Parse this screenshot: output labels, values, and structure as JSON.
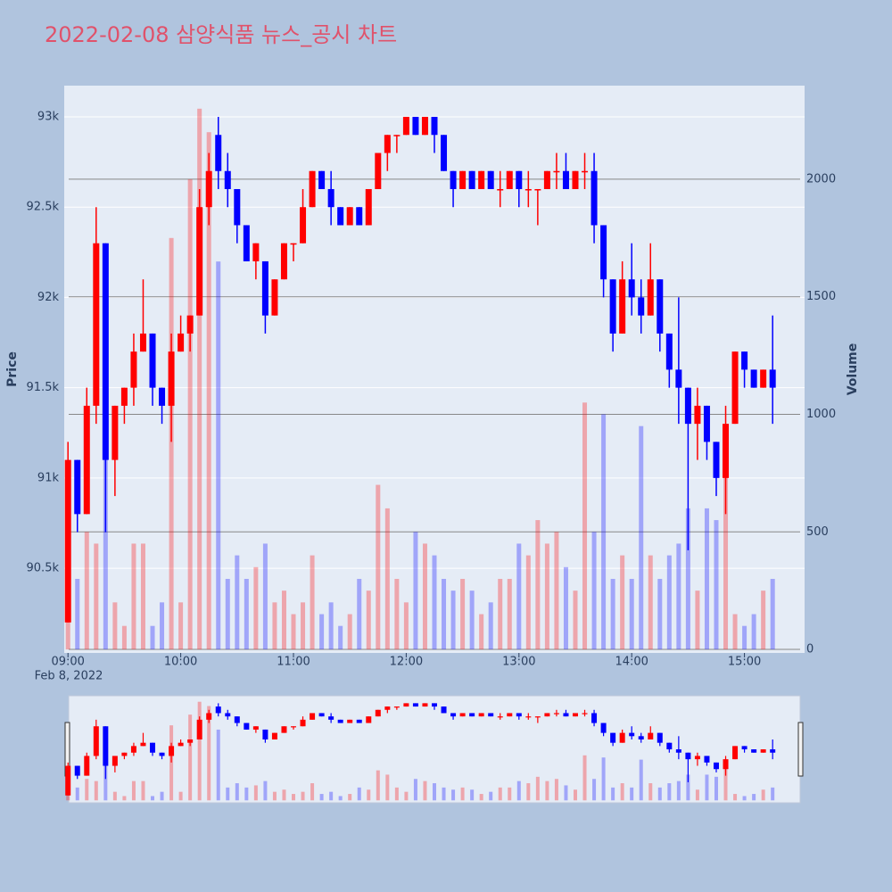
{
  "chart_data": {
    "type": "candlestick",
    "title": "2022-02-08 삼양식품 뉴스_공시 차트",
    "yaxis_title": "Price",
    "y2axis_title": "Volume",
    "x_date_label": "Feb 8, 2022",
    "up_color": "#ff0000",
    "down_color": "#0000ff",
    "x": [
      "09:00",
      "09:05",
      "09:10",
      "09:15",
      "09:20",
      "09:25",
      "09:30",
      "09:35",
      "09:40",
      "09:45",
      "09:50",
      "09:55",
      "10:00",
      "10:05",
      "10:10",
      "10:15",
      "10:20",
      "10:25",
      "10:30",
      "10:35",
      "10:40",
      "10:45",
      "10:50",
      "10:55",
      "11:00",
      "11:05",
      "11:10",
      "11:15",
      "11:20",
      "11:25",
      "11:30",
      "11:35",
      "11:40",
      "11:45",
      "11:50",
      "11:55",
      "12:00",
      "12:05",
      "12:10",
      "12:15",
      "12:20",
      "12:25",
      "12:30",
      "12:35",
      "12:40",
      "12:45",
      "12:50",
      "12:55",
      "13:00",
      "13:05",
      "13:10",
      "13:15",
      "13:20",
      "13:25",
      "13:30",
      "13:35",
      "13:40",
      "13:45",
      "13:50",
      "13:55",
      "14:00",
      "14:05",
      "14:10",
      "14:15",
      "14:20",
      "14:25",
      "14:30",
      "14:35",
      "14:40",
      "14:45",
      "14:50",
      "14:55",
      "15:00",
      "15:05",
      "15:10",
      "15:15"
    ],
    "open": [
      90200,
      91100,
      90800,
      91400,
      92300,
      91100,
      91400,
      91500,
      91700,
      91800,
      91500,
      91400,
      91700,
      91800,
      91900,
      92500,
      92900,
      92700,
      92600,
      92400,
      92200,
      92200,
      91900,
      92100,
      92300,
      92300,
      92500,
      92700,
      92600,
      92500,
      92400,
      92500,
      92400,
      92600,
      92800,
      92900,
      92900,
      93000,
      92900,
      93000,
      92900,
      92700,
      92600,
      92700,
      92600,
      92700,
      92600,
      92600,
      92700,
      92600,
      92600,
      92600,
      92700,
      92700,
      92600,
      92700,
      92700,
      92400,
      92100,
      91800,
      92100,
      92000,
      91900,
      92100,
      91800,
      91600,
      91500,
      91300,
      91400,
      91200,
      91000,
      91300,
      91700,
      91600,
      91500,
      91600
    ],
    "high": [
      91200,
      91100,
      91500,
      92500,
      92300,
      91400,
      91500,
      91800,
      92100,
      91800,
      91500,
      91800,
      91900,
      91900,
      92600,
      92800,
      93000,
      92800,
      92600,
      92400,
      92300,
      92200,
      92100,
      92300,
      92300,
      92600,
      92700,
      92700,
      92700,
      92500,
      92500,
      92500,
      92600,
      92800,
      92900,
      92900,
      93000,
      93000,
      93000,
      93000,
      92900,
      92700,
      92700,
      92700,
      92700,
      92700,
      92700,
      92700,
      92700,
      92700,
      92600,
      92700,
      92800,
      92800,
      92700,
      92800,
      92800,
      92400,
      92100,
      92200,
      92300,
      92100,
      92300,
      92100,
      91800,
      92000,
      91500,
      91500,
      91400,
      91200,
      91400,
      91700,
      91700,
      91600,
      91600,
      91900
    ],
    "low": [
      90200,
      90700,
      90800,
      91300,
      90700,
      90900,
      91300,
      91400,
      91700,
      91400,
      91300,
      91200,
      91700,
      91700,
      91900,
      92400,
      92600,
      92500,
      92300,
      92200,
      92100,
      91800,
      91900,
      92100,
      92200,
      92300,
      92500,
      92600,
      92400,
      92400,
      92400,
      92400,
      92400,
      92600,
      92700,
      92800,
      92900,
      92900,
      92900,
      92800,
      92700,
      92500,
      92600,
      92600,
      92600,
      92600,
      92500,
      92600,
      92500,
      92500,
      92400,
      92600,
      92600,
      92600,
      92600,
      92600,
      92300,
      92000,
      91700,
      91800,
      91900,
      91800,
      91900,
      91700,
      91500,
      91300,
      90600,
      91100,
      91100,
      90900,
      90800,
      91300,
      91500,
      91500,
      91500,
      91300
    ],
    "close": [
      91100,
      90800,
      91400,
      92300,
      91100,
      91400,
      91500,
      91700,
      91800,
      91500,
      91400,
      91700,
      91800,
      91900,
      92500,
      92700,
      92700,
      92600,
      92400,
      92200,
      92300,
      91900,
      92100,
      92300,
      92300,
      92500,
      92700,
      92600,
      92500,
      92400,
      92500,
      92400,
      92600,
      92800,
      92900,
      92900,
      93000,
      92900,
      93000,
      92900,
      92700,
      92600,
      92700,
      92600,
      92700,
      92600,
      92600,
      92700,
      92600,
      92600,
      92600,
      92700,
      92700,
      92600,
      92700,
      92700,
      92400,
      92100,
      91800,
      92100,
      92000,
      91900,
      92100,
      91800,
      91600,
      91500,
      91300,
      91400,
      91200,
      91000,
      91300,
      91700,
      91600,
      91500,
      91600,
      91500
    ],
    "volume": [
      150,
      300,
      500,
      450,
      900,
      200,
      100,
      450,
      450,
      100,
      200,
      1750,
      200,
      2000,
      2300,
      2200,
      1650,
      300,
      400,
      300,
      350,
      450,
      200,
      250,
      150,
      200,
      400,
      150,
      200,
      100,
      150,
      300,
      250,
      700,
      600,
      300,
      200,
      500,
      450,
      400,
      300,
      250,
      300,
      250,
      150,
      200,
      300,
      300,
      450,
      400,
      550,
      450,
      500,
      350,
      250,
      1050,
      500,
      1000,
      300,
      400,
      300,
      950,
      400,
      300,
      400,
      450,
      600,
      250,
      600,
      550,
      800,
      150,
      100,
      150,
      250,
      300
    ],
    "xlim": [
      "08:58",
      "15:32"
    ],
    "xticks": [
      "09:00",
      "10:00",
      "11:00",
      "12:00",
      "13:00",
      "14:00",
      "15:00"
    ],
    "ylim": [
      90031,
      93173
    ],
    "yticks": [
      {
        "value": 90500,
        "label": "90.5k"
      },
      {
        "value": 91000,
        "label": "91k"
      },
      {
        "value": 91500,
        "label": "91.5k"
      },
      {
        "value": 92000,
        "label": "92k"
      },
      {
        "value": 92500,
        "label": "92.5k"
      },
      {
        "value": 93000,
        "label": "93k"
      }
    ],
    "y2lim": [
      -15,
      2398
    ],
    "y2ticks": [
      0,
      500,
      1000,
      1500,
      2000
    ]
  }
}
